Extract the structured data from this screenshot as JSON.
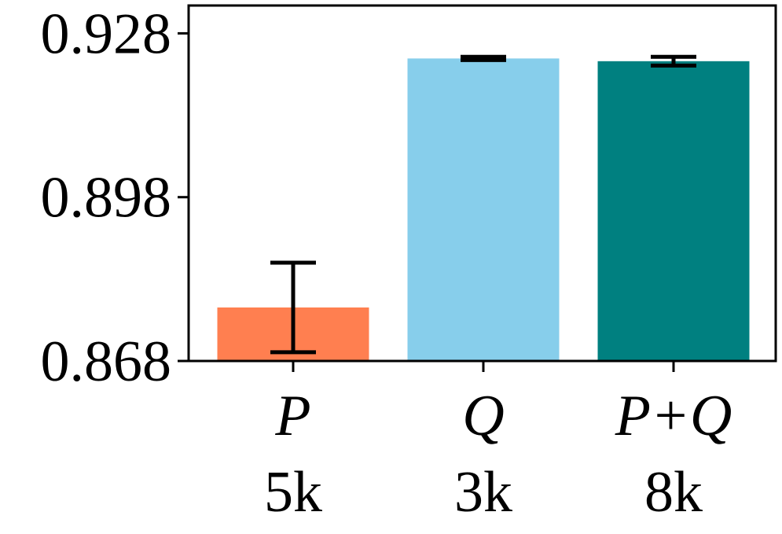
{
  "chart_data": {
    "type": "bar",
    "categories": [
      "P",
      "Q",
      "P+Q"
    ],
    "category_sublabels": [
      "5k",
      "3k",
      "8k"
    ],
    "values": [
      0.8778,
      0.9234,
      0.9229
    ],
    "error": [
      0.0082,
      0.0003,
      0.0008
    ],
    "colors": [
      "#FF7F50",
      "#87CEEB",
      "#008080"
    ],
    "yticks": [
      0.868,
      0.898,
      0.928
    ],
    "ytick_labels": [
      "0.868",
      "0.898",
      "0.928"
    ],
    "ylim": [
      0.868,
      0.9331
    ],
    "title": "",
    "xlabel": "",
    "ylabel": "",
    "grid": false,
    "legend": "none"
  }
}
